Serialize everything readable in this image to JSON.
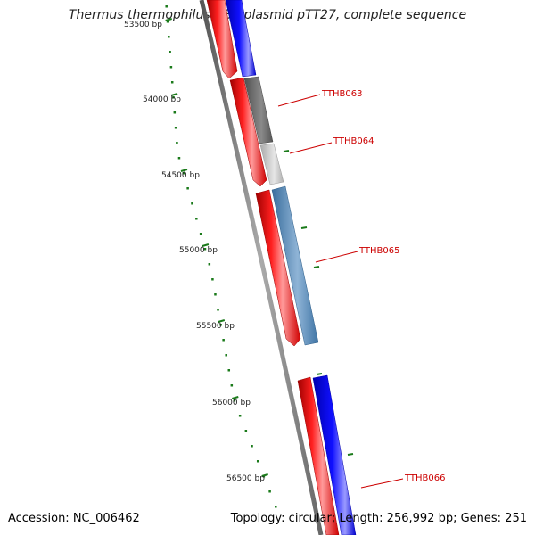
{
  "title": "Thermus thermophilus HB8 plasmid pTT27, complete sequence",
  "footer": {
    "accession": "Accession: NC_006462",
    "summary": "Topology: circular; Length: 256,992 bp; Genes: 251"
  },
  "colors": {
    "forward_strand": "#ff0000",
    "reverse_strand": "#0000ff",
    "backbone": "#777777",
    "ruler": "#1a7a1a",
    "gene_label": "#cc0000"
  },
  "ruler": {
    "partial_label": "53500 bp",
    "labels": [
      "54000 bp",
      "54500 bp",
      "55000 bp",
      "55500 bp",
      "56000 bp",
      "56500 bp"
    ]
  },
  "genes": [
    {
      "name": "TTHB063",
      "color": "#6a6a6a"
    },
    {
      "name": "TTHB064",
      "color": "#c0c0c0"
    },
    {
      "name": "TTHB065",
      "color": "#4a7fb0"
    },
    {
      "name": "TTHB066",
      "color": "#0000ff"
    }
  ]
}
